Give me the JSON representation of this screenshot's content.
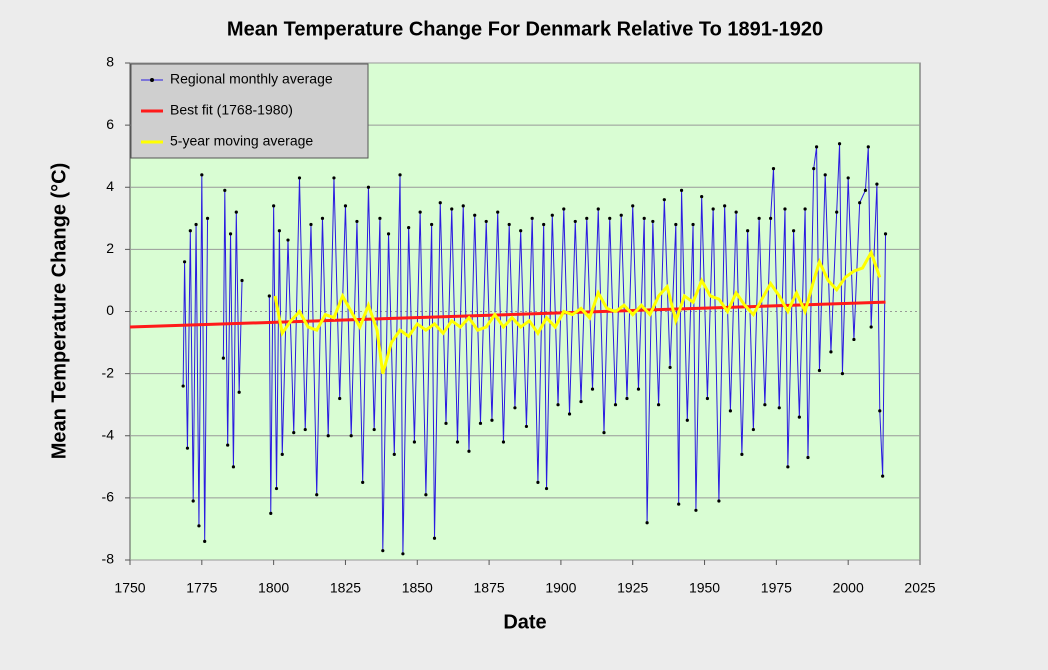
{
  "chart_data": {
    "type": "line",
    "title": "Mean Temperature Change For Denmark Relative To 1891-1920",
    "xlabel": "Date",
    "ylabel": "Mean  Temperature  Change  (°C)",
    "xlim": [
      1750,
      2025
    ],
    "xticks": [
      1750,
      1775,
      1800,
      1825,
      1850,
      1875,
      1900,
      1925,
      1950,
      1975,
      2000,
      2025
    ],
    "ylim": [
      -8,
      8
    ],
    "yticks": [
      -8,
      -6,
      -4,
      -2,
      0,
      2,
      4,
      6,
      8
    ],
    "grid": true,
    "legend": "upper left",
    "background": "#d9fdd3",
    "series": [
      {
        "name": "Regional monthly average",
        "color": "#2a1be0",
        "markers": true,
        "x": [
          1768.5,
          1769,
          1770,
          1771,
          1772,
          1773,
          1774,
          1775,
          1776,
          1777,
          1779,
          1782.5,
          1783,
          1784,
          1785,
          1786,
          1787,
          1788,
          1789,
          1794,
          1798.5,
          1799,
          1800,
          1801,
          1802,
          1803,
          1805,
          1807,
          1809,
          1811,
          1813,
          1815,
          1817,
          1819,
          1821,
          1823,
          1825,
          1827,
          1829,
          1831,
          1833,
          1835,
          1837,
          1838,
          1840,
          1842,
          1844,
          1845,
          1847,
          1849,
          1851,
          1853,
          1855,
          1856,
          1858,
          1860,
          1862,
          1864,
          1866,
          1868,
          1870,
          1872,
          1874,
          1876,
          1878,
          1880,
          1882,
          1884,
          1886,
          1888,
          1890,
          1892,
          1894,
          1895,
          1897,
          1899,
          1901,
          1903,
          1905,
          1907,
          1909,
          1911,
          1913,
          1915,
          1917,
          1919,
          1921,
          1923,
          1925,
          1927,
          1929,
          1930,
          1932,
          1934,
          1936,
          1938,
          1940,
          1941,
          1942,
          1944,
          1946,
          1947,
          1949,
          1951,
          1953,
          1955,
          1957,
          1959,
          1961,
          1963,
          1965,
          1967,
          1969,
          1971,
          1973,
          1974,
          1976,
          1978,
          1979,
          1981,
          1983,
          1985,
          1986,
          1988,
          1989,
          1990,
          1992,
          1994,
          1996,
          1997,
          1998,
          2000,
          2002,
          2004,
          2006,
          2007,
          2008,
          2010,
          2011,
          2012,
          2013
        ],
        "values": [
          -2.4,
          1.6,
          -4.4,
          2.6,
          -6.1,
          2.8,
          -6.9,
          4.4,
          -7.4,
          3.0,
          null,
          -1.5,
          3.9,
          -4.3,
          2.5,
          -5.0,
          3.2,
          -2.6,
          1.0,
          null,
          0.5,
          -6.5,
          3.4,
          -5.7,
          2.6,
          -4.6,
          2.3,
          -3.9,
          4.3,
          -3.8,
          2.8,
          -5.9,
          3.0,
          -4.0,
          4.3,
          -2.8,
          3.4,
          -4.0,
          2.9,
          -5.5,
          4.0,
          -3.8,
          3.0,
          -7.7,
          2.5,
          -4.6,
          4.4,
          -7.8,
          2.7,
          -4.2,
          3.2,
          -5.9,
          2.8,
          -7.3,
          3.5,
          -3.6,
          3.3,
          -4.2,
          3.4,
          -4.5,
          3.1,
          -3.6,
          2.9,
          -3.5,
          3.2,
          -4.2,
          2.8,
          -3.1,
          2.6,
          -3.7,
          3.0,
          -5.5,
          2.8,
          -5.7,
          3.1,
          -3.0,
          3.3,
          -3.3,
          2.9,
          -2.9,
          3.0,
          -2.5,
          3.3,
          -3.9,
          3.0,
          -3.0,
          3.1,
          -2.8,
          3.4,
          -2.5,
          3.0,
          -6.8,
          2.9,
          -3.0,
          3.6,
          -1.8,
          2.8,
          -6.2,
          3.9,
          -3.5,
          2.8,
          -6.4,
          3.7,
          -2.8,
          3.3,
          -6.1,
          3.4,
          -3.2,
          3.2,
          -4.6,
          2.6,
          -3.8,
          3.0,
          -3.0,
          3.0,
          4.6,
          -3.1,
          3.3,
          -5.0,
          2.6,
          -3.4,
          3.3,
          -4.7,
          4.6,
          5.3,
          -1.9,
          4.4,
          -1.3,
          3.2,
          5.4,
          -2.0,
          4.3,
          -0.9,
          3.5,
          3.9,
          5.3,
          -0.5,
          4.1,
          -3.2,
          -5.3,
          2.5
        ]
      },
      {
        "name": "Best fit (1768-1980)",
        "color": "#ff1a1a",
        "markers": false,
        "x": [
          1750,
          2013
        ],
        "values": [
          -0.5,
          0.3
        ]
      },
      {
        "name": "5-year moving average",
        "color": "#ffff00",
        "markers": false,
        "x": [
          1800.5,
          1803,
          1806,
          1809,
          1812,
          1815,
          1818,
          1821,
          1824,
          1827,
          1830,
          1833,
          1836,
          1838,
          1841,
          1844,
          1847,
          1850,
          1853,
          1856,
          1859,
          1862,
          1865,
          1868,
          1871,
          1874,
          1877,
          1880,
          1883,
          1886,
          1889,
          1892,
          1895,
          1898,
          1901,
          1904,
          1907,
          1910,
          1913,
          1916,
          1919,
          1922,
          1925,
          1928,
          1931,
          1934,
          1937,
          1940,
          1943,
          1946,
          1949,
          1952,
          1955,
          1958,
          1961,
          1964,
          1967,
          1970,
          1973,
          1976,
          1979,
          1982,
          1985,
          1988,
          1990,
          1993,
          1996,
          1999,
          2002,
          2005,
          2008,
          2011
        ],
        "values": [
          0.5,
          -0.7,
          -0.3,
          0.0,
          -0.5,
          -0.6,
          -0.1,
          -0.2,
          0.5,
          0.0,
          -0.5,
          0.2,
          -0.6,
          -2.0,
          -1.0,
          -0.6,
          -0.8,
          -0.4,
          -0.6,
          -0.4,
          -0.7,
          -0.3,
          -0.5,
          -0.2,
          -0.6,
          -0.5,
          -0.1,
          -0.5,
          -0.2,
          -0.5,
          -0.3,
          -0.7,
          -0.2,
          -0.5,
          0.0,
          -0.1,
          0.1,
          -0.2,
          0.6,
          0.1,
          0.0,
          0.2,
          -0.1,
          0.2,
          -0.1,
          0.5,
          0.8,
          -0.3,
          0.5,
          0.3,
          1.0,
          0.5,
          0.4,
          0.0,
          0.6,
          0.2,
          -0.1,
          0.4,
          0.9,
          0.5,
          0.0,
          0.6,
          0.0,
          1.0,
          1.6,
          1.0,
          0.7,
          1.1,
          1.3,
          1.4,
          1.9,
          1.1
        ]
      }
    ]
  }
}
